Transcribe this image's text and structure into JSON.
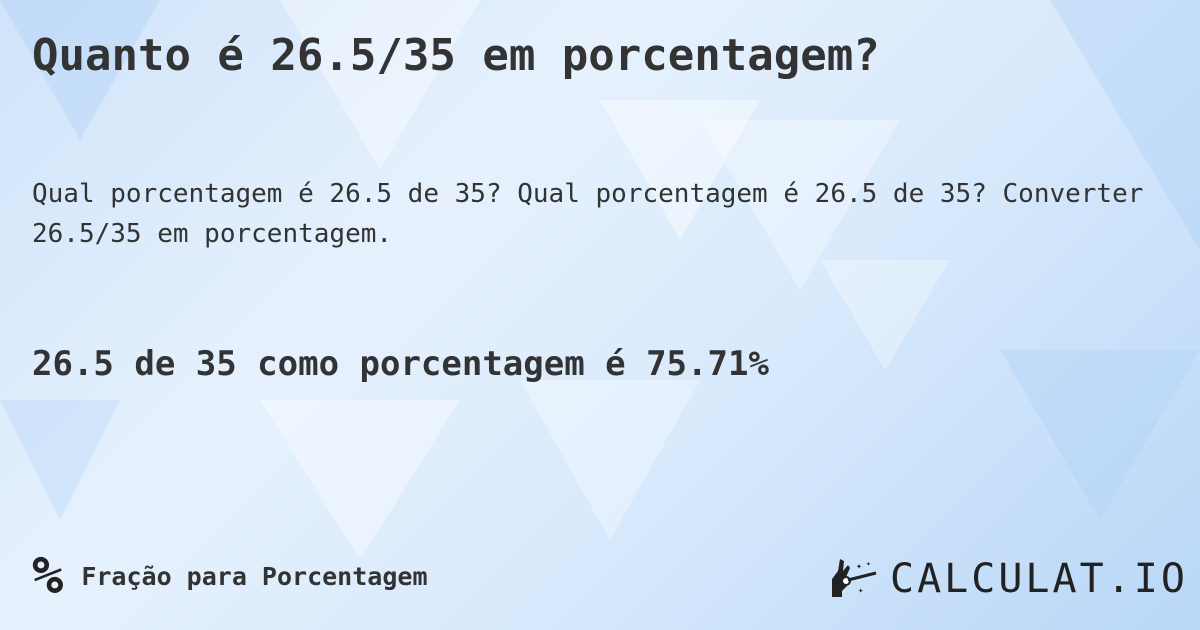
{
  "title": "Quanto é 26.5/35 em porcentagem?",
  "description": "Qual porcentagem é 26.5 de 35? Qual porcentagem é 26.5 de 35? Converter 26.5/35 em porcentagem.",
  "answer": "26.5 de 35 como porcentagem é 75.71%",
  "footer": {
    "category_icon": "percent-icon",
    "category_symbol": "%",
    "category": "Fração para Porcentagem"
  },
  "logo": {
    "text": "CALCULAT.IO",
    "icon": "magic-hand-icon"
  }
}
